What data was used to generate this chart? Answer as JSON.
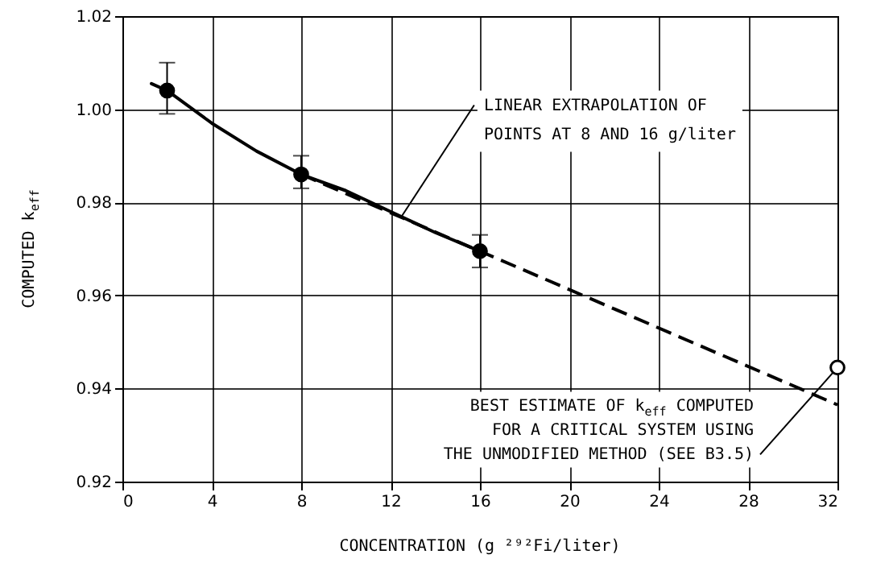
{
  "chart_data": {
    "type": "scatter",
    "xlabel": "CONCENTRATION (g ²⁹²Fi/liter)",
    "ylabel": "COMPUTED k$_{eff}$",
    "xlim": [
      0,
      32
    ],
    "xticks": [
      0,
      4,
      8,
      12,
      16,
      20,
      24,
      28,
      32
    ],
    "ylim": [
      0.92,
      1.02
    ],
    "yticks": [
      {
        "value": 0.92,
        "label": "0.92"
      },
      {
        "value": 0.94,
        "label": "0.94"
      },
      {
        "value": 0.96,
        "label": "0.96"
      },
      {
        "value": 0.98,
        "label": "0.98"
      },
      {
        "value": 1.0,
        "label": "1.00"
      },
      {
        "value": 1.02,
        "label": "1.02"
      }
    ],
    "grid": true,
    "series": [
      {
        "type": "line",
        "line_style": "dashed",
        "color": "#000000",
        "x": [
          8,
          32
        ],
        "values": [
          0.986,
          0.9365
        ]
      },
      {
        "type": "line",
        "line_style": "solid",
        "color": "#000000",
        "x": [
          1.3,
          2,
          4,
          6,
          8,
          10,
          12,
          14,
          16
        ],
        "values": [
          1.0055,
          1.004,
          0.997,
          0.991,
          0.986,
          0.9825,
          0.978,
          0.9735,
          0.9695
        ]
      },
      {
        "marker": "circle",
        "color": "#000000",
        "x": [
          2,
          8,
          16
        ],
        "values": [
          1.004,
          0.986,
          0.9695
        ],
        "errors": [
          [
            0.999,
            1.01
          ],
          [
            0.983,
            0.99
          ],
          [
            0.966,
            0.973
          ]
        ]
      },
      {
        "marker": "circle",
        "color": "#ffffff",
        "x": [
          32
        ],
        "values": [
          0.9445
        ]
      }
    ],
    "annotations": [
      {
        "text": "LINEAR EXTRAPOLATION OF\nPOINTS AT 8 AND 16 g/liter",
        "x": 12.5,
        "y": 0.977
      },
      {
        "text": "BEST ESTIMATE OF k$_{eff}$ COMPUTED\nFOR A CRITICAL SYSTEM USING\nTHE UNMODIFIED METHOD (SEE B3.5)",
        "x": 32,
        "y": 0.9445
      }
    ]
  }
}
